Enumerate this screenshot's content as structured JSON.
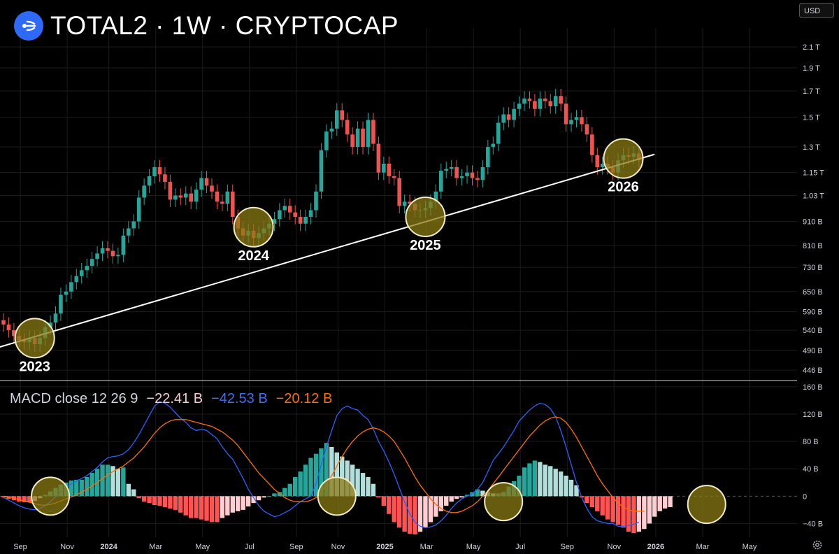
{
  "header": {
    "title": "TOTAL2 · 1W · CRYPTOCAP",
    "currency": "USD"
  },
  "macd_legend": {
    "label": "MACD close 12 26 9",
    "histogram": "−22.41 B",
    "macd": "−42.53 B",
    "signal": "−20.12 B"
  },
  "colors": {
    "up": "#26a69a",
    "down": "#ef5350",
    "macd_line": "#2962ff",
    "signal_line": "#ff6d00",
    "circle_fill": "#8a7a16",
    "circle_stroke": "#f2ecc0",
    "trendline": "#ffffff",
    "hist_up_strong": "#26a69a",
    "hist_up_weak": "#b2dfdb",
    "hist_down_strong": "#ff5252",
    "hist_down_weak": "#ffcdd2"
  },
  "chart_data": [
    {
      "type": "candlestick",
      "title": "TOTAL2 · 1W · CRYPTOCAP",
      "yscale": "log",
      "ylim": [
        430,
        2300
      ],
      "y_unit": "B",
      "y_ticks": [
        {
          "v": 2100,
          "label": "2.1 T"
        },
        {
          "v": 1900,
          "label": "1.9 T"
        },
        {
          "v": 1700,
          "label": "1.7 T"
        },
        {
          "v": 1500,
          "label": "1.5 T"
        },
        {
          "v": 1300,
          "label": "1.3 T"
        },
        {
          "v": 1150,
          "label": "1.15 T"
        },
        {
          "v": 1030,
          "label": "1.03 T"
        },
        {
          "v": 910,
          "label": "910 B"
        },
        {
          "v": 810,
          "label": "810 B"
        },
        {
          "v": 730,
          "label": "730 B"
        },
        {
          "v": 650,
          "label": "650 B"
        },
        {
          "v": 590,
          "label": "590 B"
        },
        {
          "v": 540,
          "label": "540 B"
        },
        {
          "v": 490,
          "label": "490 B"
        },
        {
          "v": 446,
          "label": "446 B"
        }
      ],
      "x_ticks": [
        {
          "week": 0,
          "label": "Sep",
          "bold": false
        },
        {
          "week": 9,
          "label": "Nov",
          "bold": false
        },
        {
          "week": 17,
          "label": "2024",
          "bold": true
        },
        {
          "week": 26,
          "label": "Mar",
          "bold": false
        },
        {
          "week": 35,
          "label": "May",
          "bold": false
        },
        {
          "week": 44,
          "label": "Jul",
          "bold": false
        },
        {
          "week": 53,
          "label": "Sep",
          "bold": false
        },
        {
          "week": 61,
          "label": "Nov",
          "bold": false
        },
        {
          "week": 70,
          "label": "2025",
          "bold": true
        },
        {
          "week": 78,
          "label": "Mar",
          "bold": false
        },
        {
          "week": 87,
          "label": "May",
          "bold": false
        },
        {
          "week": 96,
          "label": "Jul",
          "bold": false
        },
        {
          "week": 105,
          "label": "Sep",
          "bold": false
        },
        {
          "week": 114,
          "label": "Nov",
          "bold": false
        },
        {
          "week": 122,
          "label": "2026",
          "bold": true
        },
        {
          "week": 131,
          "label": "Mar",
          "bold": false
        },
        {
          "week": 140,
          "label": "May",
          "bold": false
        }
      ],
      "closes": [
        555,
        540,
        525,
        515,
        510,
        520,
        505,
        520,
        548,
        560,
        585,
        640,
        650,
        680,
        700,
        720,
        735,
        760,
        780,
        800,
        790,
        770,
        775,
        850,
        880,
        910,
        1020,
        1080,
        1130,
        1180,
        1140,
        1100,
        1010,
        1030,
        1020,
        1040,
        1000,
        1060,
        1120,
        1080,
        1050,
        1000,
        990,
        1050,
        930,
        880,
        850,
        870,
        840,
        860,
        880,
        900,
        920,
        960,
        980,
        950,
        930,
        900,
        930,
        960,
        1050,
        1280,
        1400,
        1420,
        1550,
        1480,
        1380,
        1300,
        1420,
        1300,
        1480,
        1320,
        1150,
        1200,
        1130,
        1120,
        980,
        1000,
        990,
        960,
        960,
        970,
        1000,
        1050,
        1160,
        1170,
        1180,
        1120,
        1130,
        1150,
        1120,
        1110,
        1180,
        1300,
        1320,
        1460,
        1520,
        1480,
        1560,
        1600,
        1640,
        1620,
        1560,
        1640,
        1620,
        1580,
        1660,
        1600,
        1450,
        1480,
        1500,
        1450,
        1380,
        1250,
        1180,
        1200,
        1180,
        1150,
        1220,
        1250,
        1240,
        1260,
        1220
      ],
      "annotations": [
        {
          "week": 6,
          "value": 520,
          "label": "2023"
        },
        {
          "week": 48,
          "value": 885,
          "label": "2024"
        },
        {
          "week": 81,
          "value": 930,
          "label": "2025"
        },
        {
          "week": 119,
          "value": 1230,
          "label": "2026"
        }
      ],
      "trendline": [
        {
          "week": -3,
          "value": 490
        },
        {
          "week": 125,
          "value": 1255
        }
      ]
    },
    {
      "type": "macd",
      "title": "MACD close 12 26 9",
      "ylim": [
        -60,
        165
      ],
      "y_ticks": [
        {
          "v": 160,
          "label": "160 B"
        },
        {
          "v": 120,
          "label": "120 B"
        },
        {
          "v": 80,
          "label": "80 B"
        },
        {
          "v": 40,
          "label": "40 B"
        },
        {
          "v": 0,
          "label": "0"
        },
        {
          "v": -40,
          "label": "−40 B"
        }
      ],
      "macd": [
        -2,
        -6,
        -10,
        -14,
        -17,
        -19,
        -20,
        -18,
        -14,
        -8,
        -1,
        6,
        12,
        18,
        22,
        26,
        30,
        36,
        42,
        50,
        56,
        58,
        59,
        62,
        68,
        78,
        90,
        104,
        118,
        132,
        138,
        136,
        130,
        122,
        114,
        108,
        100,
        96,
        98,
        96,
        90,
        84,
        72,
        62,
        54,
        40,
        26,
        10,
        -2,
        -14,
        -22,
        -26,
        -30,
        -28,
        -24,
        -20,
        -14,
        -8,
        -4,
        0,
        18,
        46,
        72,
        96,
        118,
        128,
        132,
        128,
        126,
        118,
        112,
        98,
        80,
        66,
        50,
        32,
        12,
        -8,
        -26,
        -38,
        -44,
        -46,
        -45,
        -42,
        -36,
        -28,
        -18,
        -10,
        -4,
        0,
        4,
        10,
        20,
        36,
        52,
        62,
        72,
        84,
        96,
        110,
        118,
        126,
        132,
        136,
        134,
        128,
        116,
        96,
        72,
        46,
        20,
        -2,
        -18,
        -30,
        -36,
        -38,
        -40,
        -40,
        -44,
        -44,
        -43,
        -41,
        -38
      ],
      "signal": [
        0,
        -1,
        -3,
        -5,
        -7,
        -9,
        -11,
        -13,
        -13,
        -12,
        -10,
        -7,
        -4,
        -1,
        2,
        6,
        10,
        15,
        20,
        26,
        31,
        36,
        40,
        44,
        50,
        56,
        64,
        72,
        82,
        92,
        100,
        106,
        110,
        112,
        112,
        112,
        110,
        108,
        106,
        104,
        102,
        98,
        94,
        88,
        82,
        74,
        64,
        54,
        44,
        34,
        26,
        18,
        10,
        4,
        -2,
        -6,
        -8,
        -8,
        -8,
        -6,
        -2,
        6,
        18,
        30,
        44,
        58,
        70,
        80,
        88,
        94,
        98,
        100,
        98,
        94,
        88,
        80,
        68,
        56,
        42,
        28,
        16,
        6,
        -4,
        -12,
        -18,
        -22,
        -24,
        -24,
        -22,
        -18,
        -14,
        -8,
        0,
        8,
        18,
        28,
        38,
        48,
        58,
        68,
        78,
        88,
        96,
        104,
        110,
        114,
        116,
        114,
        108,
        98,
        86,
        72,
        58,
        44,
        30,
        18,
        8,
        -2,
        -10,
        -16,
        -20,
        -22,
        -22,
        -22
      ],
      "hist": [
        -2,
        -4,
        -6,
        -8,
        -9,
        -9,
        -7,
        -3,
        2,
        7,
        12,
        17,
        20,
        23,
        24,
        24,
        28,
        34,
        40,
        46,
        46,
        44,
        40,
        42,
        18,
        10,
        -3,
        -8,
        -10,
        -13,
        -14,
        -16,
        -18,
        -20,
        -24,
        -28,
        -32,
        -32,
        -34,
        -36,
        -38,
        -38,
        -32,
        -28,
        -24,
        -22,
        -20,
        -15,
        -10,
        -6,
        -2,
        0,
        4,
        6,
        12,
        18,
        28,
        36,
        46,
        56,
        62,
        70,
        78,
        72,
        64,
        58,
        52,
        46,
        40,
        34,
        28,
        18,
        -2,
        -14,
        -26,
        -38,
        -46,
        -52,
        -55,
        -56,
        -52,
        -46,
        -38,
        -30,
        -22,
        -14,
        -8,
        -4,
        -2,
        2,
        6,
        10,
        8,
        6,
        4,
        4,
        6,
        14,
        22,
        30,
        42,
        48,
        52,
        50,
        46,
        44,
        40,
        36,
        30,
        24,
        16,
        -2,
        -10,
        -16,
        -22,
        -28,
        -34,
        -38,
        -42,
        -46,
        -52,
        -54,
        -52,
        -48,
        -40,
        -30,
        -22,
        -18,
        -16
      ]
    }
  ]
}
